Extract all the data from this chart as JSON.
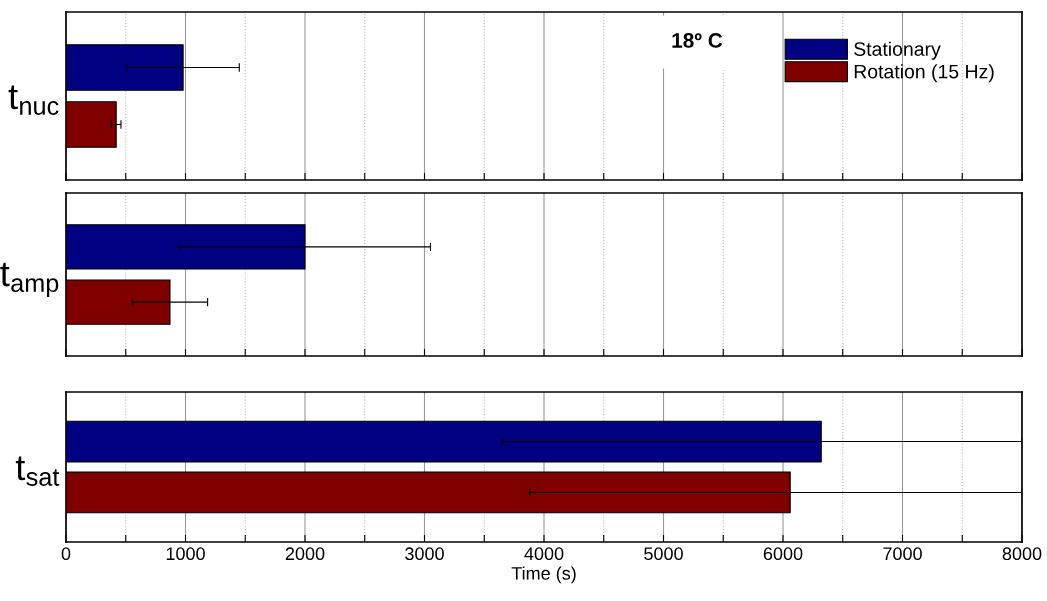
{
  "chart_data": [
    {
      "type": "bar",
      "orientation": "horizontal",
      "categories": [
        "t$_{nuc}$"
      ],
      "legend": "top right",
      "annotations": [
        "18º C"
      ],
      "series": [
        {
          "name": "Stationary",
          "color": "#000080",
          "values": [
            980
          ],
          "errors": [
            470
          ]
        },
        {
          "name": "Rotation (15 Hz)",
          "color": "#800000",
          "values": [
            420
          ],
          "errors": [
            40
          ]
        }
      ],
      "xlim": [
        0,
        8000
      ],
      "xticks": [
        0,
        {
          "value": 500,
          "label": null
        },
        1000,
        {
          "value": 1500,
          "label": null
        },
        2000,
        {
          "value": 2500,
          "label": null
        },
        3000,
        {
          "value": 3500,
          "label": null
        },
        4000,
        {
          "value": 4500,
          "label": null
        },
        5000,
        {
          "value": 5500,
          "label": null
        },
        6000,
        {
          "value": 6500,
          "label": null
        },
        7000,
        {
          "value": 7500,
          "label": null
        },
        8000
      ],
      "grid": "x",
      "tick_labels": "y"
    },
    {
      "type": "bar",
      "orientation": "horizontal",
      "categories": [
        "t$_{amp}$"
      ],
      "series": [
        {
          "color": "#000080",
          "values": [
            2000
          ],
          "errors": [
            1050
          ]
        },
        {
          "color": "#800000",
          "values": [
            870
          ],
          "errors": [
            315
          ]
        }
      ],
      "xlim": [
        0,
        8000
      ],
      "xticks": [
        0,
        {
          "value": 500,
          "label": null
        },
        1000,
        {
          "value": 1500,
          "label": null
        },
        2000,
        {
          "value": 2500,
          "label": null
        },
        3000,
        {
          "value": 3500,
          "label": null
        },
        4000,
        {
          "value": 4500,
          "label": null
        },
        5000,
        {
          "value": 5500,
          "label": null
        },
        6000,
        {
          "value": 6500,
          "label": null
        },
        7000,
        {
          "value": 7500,
          "label": null
        },
        8000
      ],
      "grid": "x",
      "tick_labels": "y"
    },
    {
      "type": "bar",
      "orientation": "horizontal",
      "xlabel": "Time (s)",
      "categories": [
        "t$_{sat}$"
      ],
      "series": [
        {
          "color": "#000080",
          "values": [
            6320
          ],
          "errors": [
            [
              3650,
              8000
            ]
          ]
        },
        {
          "color": "#800000",
          "values": [
            6060
          ],
          "errors": [
            [
              3880,
              8000
            ]
          ]
        }
      ],
      "xlim": [
        0,
        8000
      ],
      "xticks": [
        0,
        {
          "value": 500,
          "label": null
        },
        1000,
        {
          "value": 1500,
          "label": null
        },
        2000,
        {
          "value": 2500,
          "label": null
        },
        3000,
        {
          "value": 3500,
          "label": null
        },
        4000,
        {
          "value": 4500,
          "label": null
        },
        5000,
        {
          "value": 5500,
          "label": null
        },
        6000,
        {
          "value": 6500,
          "label": null
        },
        7000,
        {
          "value": 7500,
          "label": null
        },
        8000
      ],
      "grid": "x"
    }
  ]
}
